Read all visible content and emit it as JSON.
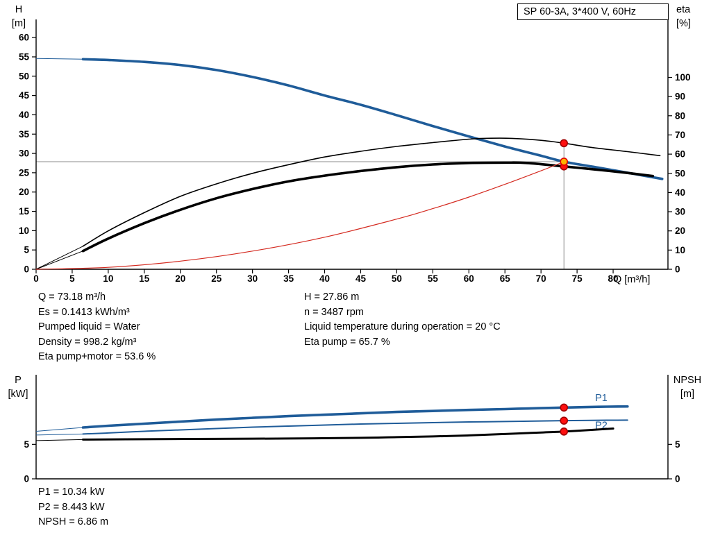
{
  "title_box": {
    "label": "SP 60-3A, 3*400 V, 60Hz"
  },
  "axis_labels": {
    "top_left_line1": "H",
    "top_left_line2": "[m]",
    "top_right_line1": "eta",
    "top_right_line2": "[%]",
    "x_label": "Q [m³/h]",
    "bottom_left_line1": "P",
    "bottom_left_line2": "[kW]",
    "bottom_right_line1": "NPSH",
    "bottom_right_line2": "[m]"
  },
  "annotations": {
    "left": [
      "Q = 73.18 m³/h",
      "Es = 0.1413 kWh/m³",
      "Pumped liquid = Water",
      "Density = 998.2 kg/m³",
      "Eta pump+motor = 53.6 %"
    ],
    "right": [
      "H = 27.86 m",
      "n = 3487 rpm",
      "Liquid temperature during operation = 20 °C",
      "Eta pump = 65.7 %"
    ],
    "bottom": [
      "P1 = 10.34 kW",
      "P2 = 8.443 kW",
      "NPSH = 6.86 m"
    ]
  },
  "duty_point": {
    "q_m3h": 73.18,
    "h_m": 27.86,
    "eta_pump_pct": 65.7,
    "eta_pump_motor_pct": 53.6,
    "p1_kw": 10.34,
    "p2_kw": 8.443,
    "npsh_m": 6.86,
    "n_rpm": 3487,
    "es_kwh_m3": 0.1413,
    "liquid": "Water",
    "density_kg_m3": 998.2,
    "liquid_temp_c": 20
  },
  "colors": {
    "curve_blue": "#1f5c99",
    "curve_black": "#000000",
    "curve_red": "#d42a20",
    "marker_red": "#ff1010",
    "marker_red_edge": "#a00000",
    "marker_yellow": "#ffb400",
    "guide_gray": "#8c8c8c"
  },
  "chart_data": [
    {
      "type": "line",
      "title": "SP 60-3A, 3*400 V, 60Hz",
      "x_axis": {
        "label": "Q [m³/h]",
        "min": 0,
        "max": 87.6,
        "ticks": [
          0,
          5,
          10,
          15,
          20,
          25,
          30,
          35,
          40,
          45,
          50,
          55,
          60,
          65,
          70,
          75,
          80
        ]
      },
      "y_left": {
        "label": "H [m]",
        "min": 0,
        "max": 64.7,
        "ticks": [
          0,
          5,
          10,
          15,
          20,
          25,
          30,
          35,
          40,
          45,
          50,
          55,
          60
        ]
      },
      "y_right": {
        "label": "eta [%]",
        "min": 0,
        "max": 130.2,
        "ticks": [
          0,
          10,
          20,
          30,
          40,
          50,
          60,
          70,
          80,
          90,
          100
        ]
      },
      "series": [
        {
          "name": "head",
          "axis": "left",
          "color": "#1f5c99",
          "width": 3.6,
          "lead": [
            [
              0,
              54.6
            ],
            [
              6.5,
              54.4
            ]
          ],
          "points": [
            [
              6.5,
              54.4
            ],
            [
              10,
              54.2
            ],
            [
              15,
              53.7
            ],
            [
              20,
              52.9
            ],
            [
              25,
              51.6
            ],
            [
              30,
              49.8
            ],
            [
              35,
              47.6
            ],
            [
              40,
              45.0
            ],
            [
              45,
              42.6
            ],
            [
              50,
              39.9
            ],
            [
              55,
              37.1
            ],
            [
              60,
              34.4
            ],
            [
              65,
              31.8
            ],
            [
              70,
              29.4
            ],
            [
              73.18,
              27.86
            ],
            [
              78,
              26.3
            ],
            [
              82,
              25.0
            ],
            [
              86.8,
              23.4
            ]
          ]
        },
        {
          "name": "eta-pump",
          "axis": "right",
          "color": "#000000",
          "width": 1.6,
          "lead": [
            [
              0,
              0
            ],
            [
              6.5,
              12
            ]
          ],
          "points": [
            [
              6.5,
              12
            ],
            [
              10,
              20
            ],
            [
              15,
              29.5
            ],
            [
              20,
              38
            ],
            [
              25,
              44.5
            ],
            [
              30,
              50
            ],
            [
              35,
              54.5
            ],
            [
              40,
              58.5
            ],
            [
              45,
              61.5
            ],
            [
              50,
              64
            ],
            [
              55,
              66
            ],
            [
              60,
              67.8
            ],
            [
              63,
              68.3
            ],
            [
              66,
              68.2
            ],
            [
              70,
              67.2
            ],
            [
              73.18,
              65.7
            ],
            [
              77,
              63.5
            ],
            [
              82,
              61.3
            ],
            [
              86.5,
              59.2
            ]
          ]
        },
        {
          "name": "eta-pump-motor",
          "axis": "right",
          "color": "#000000",
          "width": 3.6,
          "lead": [
            [
              0,
              0
            ],
            [
              6.5,
              9.5
            ]
          ],
          "points": [
            [
              6.5,
              9.5
            ],
            [
              10,
              16
            ],
            [
              15,
              24
            ],
            [
              20,
              31
            ],
            [
              25,
              37
            ],
            [
              30,
              41.8
            ],
            [
              35,
              45.8
            ],
            [
              40,
              48.8
            ],
            [
              45,
              51.2
            ],
            [
              50,
              53.2
            ],
            [
              55,
              54.6
            ],
            [
              60,
              55.4
            ],
            [
              65,
              55.6
            ],
            [
              68,
              55.4
            ],
            [
              73.18,
              53.6
            ],
            [
              77,
              52.2
            ],
            [
              82,
              50.2
            ],
            [
              85.5,
              48.6
            ]
          ]
        },
        {
          "name": "system-curve",
          "axis": "left",
          "color": "#d42a20",
          "width": 1.2,
          "points": [
            [
              0,
              0
            ],
            [
              10,
              0.5
            ],
            [
              20,
              2.1
            ],
            [
              30,
              4.7
            ],
            [
              40,
              8.3
            ],
            [
              50,
              13.0
            ],
            [
              55,
              15.7
            ],
            [
              60,
              18.7
            ],
            [
              65,
              22.0
            ],
            [
              70,
              25.5
            ],
            [
              73.18,
              27.86
            ]
          ]
        }
      ],
      "guides": [
        {
          "type": "v",
          "x": 73.18,
          "axis": "right",
          "to_value": 65.7,
          "color": "#8c8c8c"
        },
        {
          "type": "h",
          "axis": "left",
          "value": 27.86,
          "to_x": 73.18,
          "color": "#8c8c8c"
        }
      ],
      "markers": [
        {
          "x": 73.18,
          "axis": "right",
          "value": 65.7,
          "fill": "#ff1010",
          "stroke": "#a00000",
          "r": 5
        },
        {
          "x": 73.18,
          "axis": "right",
          "value": 53.6,
          "fill": "#ff1010",
          "stroke": "#a00000",
          "r": 5
        },
        {
          "x": 73.18,
          "axis": "left",
          "value": 27.86,
          "fill": "#ffb400",
          "stroke": "#e00000",
          "r": 5
        }
      ]
    },
    {
      "type": "line",
      "title": "Power and NPSH",
      "x_axis": {
        "label": "Q [m³/h]",
        "min": 0,
        "max": 87.6,
        "ticks": []
      },
      "y_left": {
        "label": "P [kW]",
        "min": 0,
        "max": 15.1,
        "ticks": [
          0,
          5
        ]
      },
      "y_right": {
        "label": "NPSH [m]",
        "min": 0,
        "max": 15.1,
        "ticks": [
          0,
          5
        ]
      },
      "series": [
        {
          "name": "p1",
          "axis": "left",
          "color": "#1f5c99",
          "width": 3.6,
          "label": "P1",
          "label_pos": [
            77.5,
            11.8
          ],
          "lead": [
            [
              0,
              6.9
            ],
            [
              6.5,
              7.45
            ]
          ],
          "points": [
            [
              6.5,
              7.45
            ],
            [
              10,
              7.7
            ],
            [
              15,
              8.0
            ],
            [
              20,
              8.3
            ],
            [
              25,
              8.6
            ],
            [
              30,
              8.85
            ],
            [
              35,
              9.1
            ],
            [
              40,
              9.3
            ],
            [
              45,
              9.5
            ],
            [
              50,
              9.7
            ],
            [
              55,
              9.85
            ],
            [
              60,
              10.0
            ],
            [
              65,
              10.12
            ],
            [
              70,
              10.26
            ],
            [
              73.18,
              10.34
            ],
            [
              78,
              10.45
            ],
            [
              82,
              10.5
            ]
          ]
        },
        {
          "name": "p2",
          "axis": "left",
          "color": "#1f5c99",
          "width": 2,
          "label": "P2",
          "label_pos": [
            77.5,
            7.8
          ],
          "lead": [
            [
              0,
              6.35
            ],
            [
              6.5,
              6.5
            ]
          ],
          "points": [
            [
              6.5,
              6.5
            ],
            [
              10,
              6.65
            ],
            [
              15,
              6.9
            ],
            [
              20,
              7.1
            ],
            [
              25,
              7.3
            ],
            [
              30,
              7.5
            ],
            [
              35,
              7.65
            ],
            [
              40,
              7.8
            ],
            [
              45,
              7.95
            ],
            [
              50,
              8.05
            ],
            [
              55,
              8.15
            ],
            [
              60,
              8.25
            ],
            [
              65,
              8.32
            ],
            [
              70,
              8.4
            ],
            [
              73.18,
              8.443
            ],
            [
              78,
              8.5
            ],
            [
              82,
              8.52
            ]
          ]
        },
        {
          "name": "npsh",
          "axis": "right",
          "color": "#000000",
          "width": 3,
          "lead": [
            [
              0,
              5.55
            ],
            [
              6.5,
              5.7
            ]
          ],
          "points": [
            [
              6.5,
              5.7
            ],
            [
              15,
              5.75
            ],
            [
              25,
              5.8
            ],
            [
              35,
              5.85
            ],
            [
              45,
              5.95
            ],
            [
              50,
              6.05
            ],
            [
              55,
              6.15
            ],
            [
              60,
              6.3
            ],
            [
              65,
              6.5
            ],
            [
              70,
              6.72
            ],
            [
              73.18,
              6.86
            ],
            [
              77,
              7.1
            ],
            [
              80,
              7.3
            ]
          ]
        }
      ],
      "guides": [],
      "markers": [
        {
          "x": 73.18,
          "axis": "left",
          "value": 10.34,
          "fill": "#ff1010",
          "stroke": "#a00000",
          "r": 5
        },
        {
          "x": 73.18,
          "axis": "left",
          "value": 8.443,
          "fill": "#ff1010",
          "stroke": "#a00000",
          "r": 5
        },
        {
          "x": 73.18,
          "axis": "right",
          "value": 6.86,
          "fill": "#ff1010",
          "stroke": "#a00000",
          "r": 5
        }
      ]
    }
  ]
}
